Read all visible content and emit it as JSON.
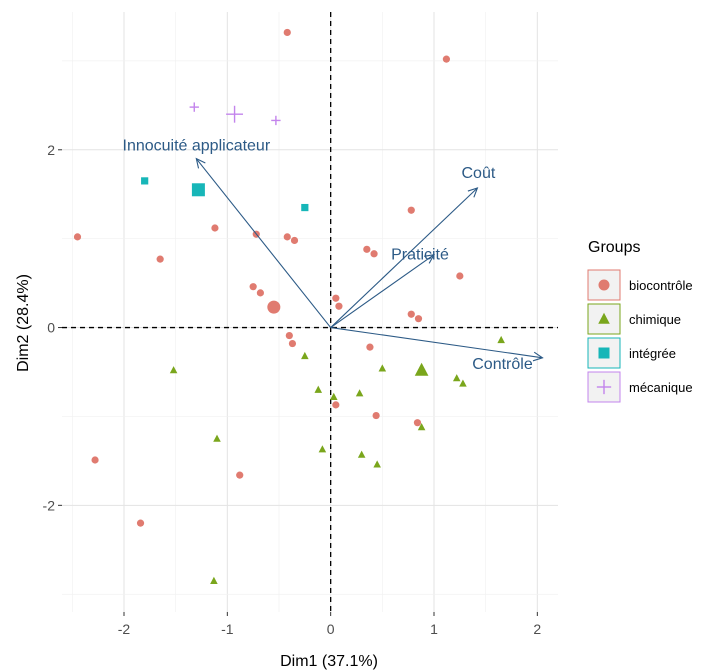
{
  "chart_data": {
    "type": "scatter",
    "title": "",
    "xlabel": "Dim1 (37.1%)",
    "ylabel": "Dim2 (28.4%)",
    "xlim": [
      -2.6,
      2.2
    ],
    "ylim": [
      -3.2,
      3.55
    ],
    "xticks": [
      -2,
      -1,
      0,
      1,
      2
    ],
    "yticks": [
      -2,
      0,
      2
    ],
    "grid": true,
    "legend": {
      "title": "Groups",
      "placement": "right",
      "entries": [
        {
          "label": "biocontrôle",
          "shape": "circle",
          "color": "#e07b70"
        },
        {
          "label": "chimique",
          "shape": "triangle",
          "color": "#7aa61c"
        },
        {
          "label": "intégrée",
          "shape": "square",
          "color": "#17b6b8"
        },
        {
          "label": "mécanique",
          "shape": "cross",
          "color": "#c384ec"
        }
      ]
    },
    "series": [
      {
        "name": "biocontrôle",
        "points": [
          [
            -0.42,
            3.32
          ],
          [
            1.12,
            3.02
          ],
          [
            -2.45,
            1.02
          ],
          [
            -1.12,
            1.12
          ],
          [
            -0.72,
            1.05
          ],
          [
            -0.42,
            1.02
          ],
          [
            -0.35,
            0.98
          ],
          [
            -1.65,
            0.77
          ],
          [
            0.35,
            0.88
          ],
          [
            0.42,
            0.83
          ],
          [
            0.78,
            1.32
          ],
          [
            1.25,
            0.58
          ],
          [
            -0.75,
            0.46
          ],
          [
            -0.68,
            0.39
          ],
          [
            0.05,
            0.33
          ],
          [
            0.08,
            0.24
          ],
          [
            0.78,
            0.15
          ],
          [
            0.85,
            0.1
          ],
          [
            -0.4,
            -0.09
          ],
          [
            -0.37,
            -0.18
          ],
          [
            0.38,
            -0.22
          ],
          [
            0.05,
            -0.87
          ],
          [
            0.44,
            -0.99
          ],
          [
            0.84,
            -1.07
          ],
          [
            -2.28,
            -1.49
          ],
          [
            -0.88,
            -1.66
          ],
          [
            -1.84,
            -2.2
          ]
        ],
        "centroid": [
          -0.55,
          0.23
        ]
      },
      {
        "name": "chimique",
        "points": [
          [
            -1.52,
            -0.48
          ],
          [
            -0.25,
            -0.32
          ],
          [
            1.65,
            -0.14
          ],
          [
            0.5,
            -0.46
          ],
          [
            1.22,
            -0.57
          ],
          [
            1.28,
            -0.63
          ],
          [
            -0.12,
            -0.7
          ],
          [
            0.28,
            -0.74
          ],
          [
            0.03,
            -0.78
          ],
          [
            0.88,
            -1.12
          ],
          [
            -1.1,
            -1.25
          ],
          [
            -0.08,
            -1.37
          ],
          [
            0.3,
            -1.43
          ],
          [
            0.45,
            -1.54
          ],
          [
            -1.13,
            -2.85
          ]
        ],
        "centroid": [
          0.88,
          -0.48
        ]
      },
      {
        "name": "intégrée",
        "points": [
          [
            -1.8,
            1.65
          ],
          [
            -0.25,
            1.35
          ]
        ],
        "centroid": [
          -1.28,
          1.55
        ]
      },
      {
        "name": "mécanique",
        "points": [
          [
            -1.32,
            2.48
          ],
          [
            -0.53,
            2.33
          ]
        ],
        "centroid": [
          -0.93,
          2.4
        ]
      }
    ],
    "variables": [
      {
        "label": "Innocuité applicateur",
        "x": -1.3,
        "y": 1.9
      },
      {
        "label": "Coût",
        "x": 1.42,
        "y": 1.57
      },
      {
        "label": "Praticité",
        "x": 1.0,
        "y": 0.82
      },
      {
        "label": "Contrôle",
        "x": 2.05,
        "y": -0.34
      }
    ]
  }
}
